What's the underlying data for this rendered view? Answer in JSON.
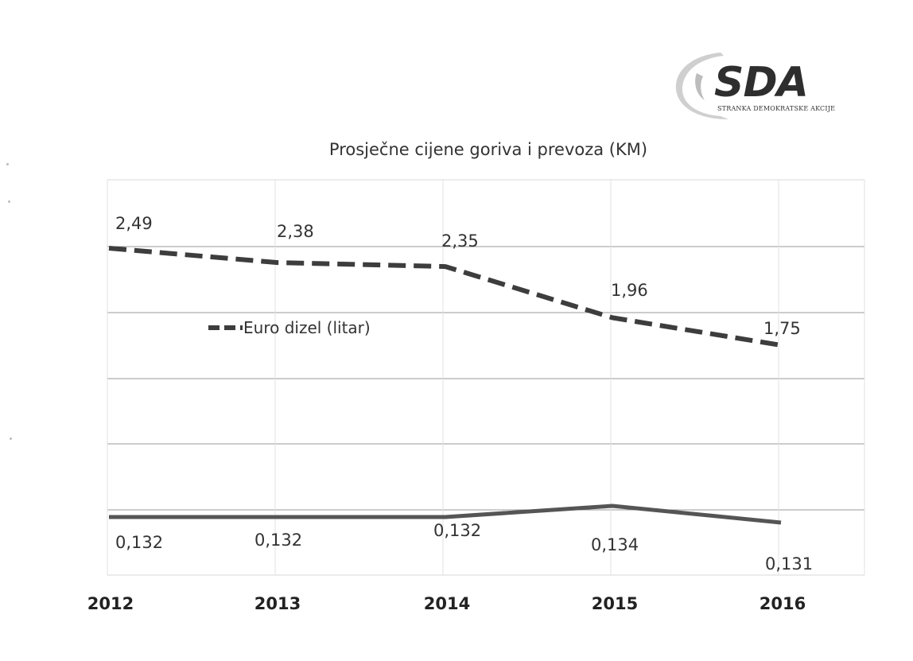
{
  "logo": {
    "text": "SDA",
    "subtitle": "STRANKA DEMOKRATSKE AKCIJE"
  },
  "chart_data": {
    "type": "line",
    "title": "Prosječne cijene goriva i prevoza (KM)",
    "x": [
      "2012",
      "2013",
      "2014",
      "2015",
      "2016"
    ],
    "series": [
      {
        "name": "Euro dizel (litar)",
        "values": [
          2.49,
          2.38,
          2.35,
          1.96,
          1.75
        ],
        "value_labels": [
          "2,49",
          "2,38",
          "2,35",
          "1,96",
          "1,75"
        ],
        "line_style": "dashed",
        "color": "#3d3d3d"
      },
      {
        "name": "",
        "values": [
          0.132,
          0.132,
          0.132,
          0.134,
          0.131
        ],
        "value_labels": [
          "0,132",
          "0,132",
          "0,132",
          "0,134",
          "0,131"
        ],
        "line_style": "solid",
        "color": "#555555"
      }
    ],
    "grid": true,
    "legend_position": "middle-left",
    "xlabel": "",
    "ylabel": ""
  }
}
